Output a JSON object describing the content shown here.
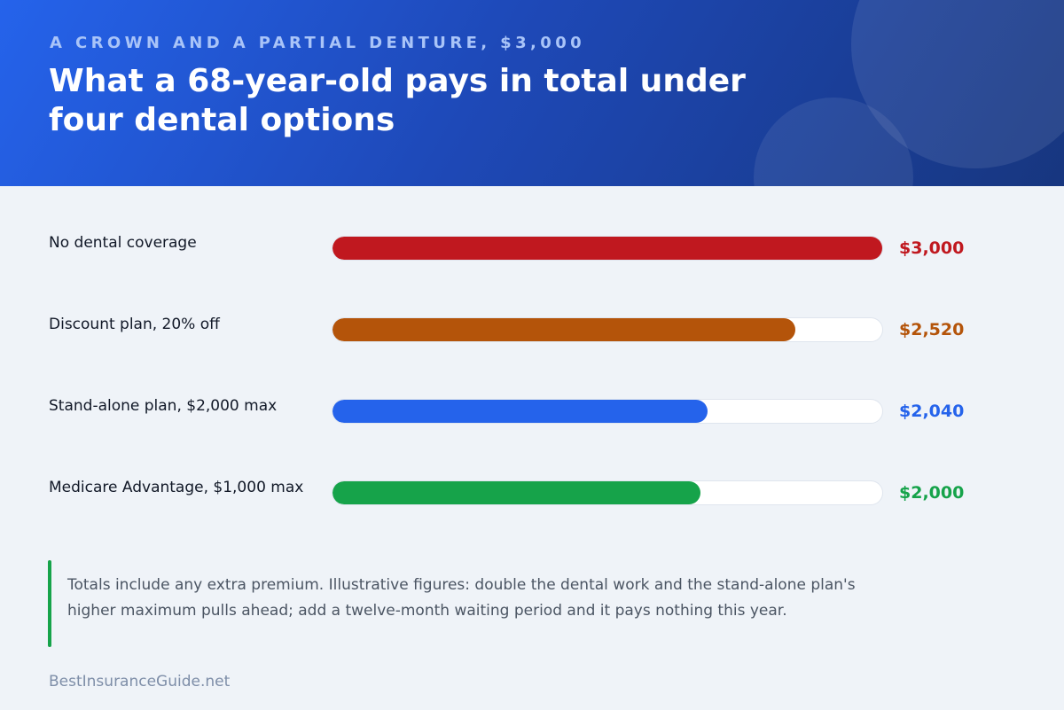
{
  "header": {
    "kicker": "A CROWN AND A PARTIAL DENTURE, $3,000"
  },
  "note": "Totals include any extra premium. Illustrative figures: double the dental work and the stand-alone plan's higher maximum pulls ahead; add a twelve-month waiting period and it pays nothing this year.",
  "footer": {
    "site": "BestInsuranceGuide.net"
  },
  "chart_data": {
    "type": "bar",
    "orientation": "horizontal",
    "title": "What a 68-year-old pays in total under four dental options",
    "categories": [
      "No dental coverage",
      "Discount plan, 20% off",
      "Stand-alone plan, $2,000 max",
      "Medicare Advantage, $1,000 max"
    ],
    "values": [
      3000,
      2520,
      2040,
      2000
    ],
    "value_labels": [
      "$3,000",
      "$2,520",
      "$2,040",
      "$2,000"
    ],
    "colors": [
      "#c0181f",
      "#b4540a",
      "#2563eb",
      "#16a34a"
    ],
    "xlim": [
      0,
      3000
    ],
    "grid": false,
    "legend": "none"
  }
}
